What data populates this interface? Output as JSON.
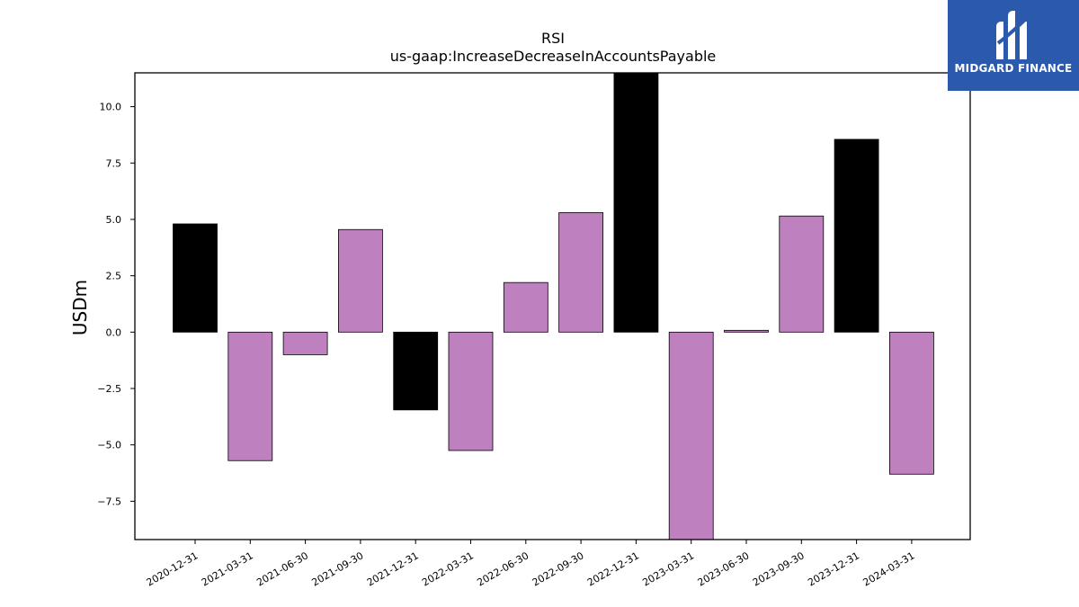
{
  "brand": {
    "name": "MIDGARD FINANCE",
    "color": "#2b5aad",
    "icon": "midgard-logo-icon"
  },
  "chart_data": {
    "type": "bar",
    "title": "RSI",
    "subtitle": "us-gaap:IncreaseDecreaseInAccountsPayable",
    "xlabel": "",
    "ylabel": "USDm",
    "categories": [
      "2020-12-31",
      "2021-03-31",
      "2021-06-30",
      "2021-09-30",
      "2021-12-31",
      "2022-03-31",
      "2022-06-30",
      "2022-09-30",
      "2022-12-31",
      "2023-03-31",
      "2023-06-30",
      "2023-09-30",
      "2023-12-31",
      "2024-03-31"
    ],
    "values": [
      4.8,
      -5.7,
      -1.0,
      4.55,
      -3.45,
      -5.25,
      2.2,
      5.3,
      11.5,
      -9.2,
      0.08,
      5.15,
      8.55,
      -6.3
    ],
    "bar_colors": [
      "#000000",
      "#bf80bf",
      "#bf80bf",
      "#bf80bf",
      "#000000",
      "#bf80bf",
      "#bf80bf",
      "#bf80bf",
      "#000000",
      "#bf80bf",
      "#bf80bf",
      "#bf80bf",
      "#000000",
      "#bf80bf"
    ],
    "ylim": [
      -9.2,
      11.5
    ],
    "yticks": [
      -7.5,
      -5.0,
      -2.5,
      0.0,
      2.5,
      5.0,
      7.5,
      10.0
    ],
    "ytick_labels": [
      "−7.5",
      "−5.0",
      "−2.5",
      "0.0",
      "2.5",
      "5.0",
      "7.5",
      "10.0"
    ],
    "grid": false,
    "legend": "none"
  }
}
